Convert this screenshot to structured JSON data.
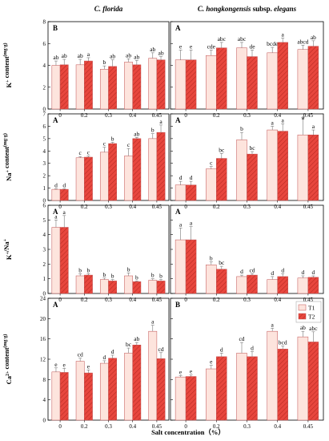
{
  "chart_data": {
    "type": "bar",
    "columns": [
      "C. florida",
      "C. hongkongensis subsp. elegans"
    ],
    "column_title_parts": [
      [
        {
          "t": "C. florida",
          "italic": true
        }
      ],
      [
        {
          "t": "C. hongkongensis",
          "italic": true
        },
        {
          "t": " subsp. ",
          "italic": false
        },
        {
          "t": "elegans",
          "italic": true
        }
      ]
    ],
    "categories": [
      "0",
      "0.2",
      "0.3",
      "0.4",
      "0.45"
    ],
    "xlabel": "Salt concentration（%）",
    "legend": [
      "T1",
      "T2"
    ],
    "legend_position": "top-right of bottom-right panel",
    "series_colors": {
      "T1": "#fde4dd",
      "T2": "#e8473e",
      "T2_hatch": "#b82a22",
      "edge": "#c05050"
    },
    "rows": [
      {
        "ylabel_parts": [
          {
            "t": "K"
          },
          {
            "t": "+",
            "sup": true
          },
          {
            "t": " content"
          },
          {
            "t": "(mg·g)",
            "sup": true
          }
        ],
        "ylim": [
          0,
          8
        ],
        "yticks": [
          0,
          2,
          4,
          6,
          8
        ],
        "panels": [
          {
            "letter": "B",
            "T1": [
              4.0,
              4.05,
              3.65,
              4.3,
              4.65
            ],
            "T1_err": [
              0.4,
              0.5,
              0.3,
              0.3,
              0.5
            ],
            "T2": [
              4.05,
              4.4,
              3.9,
              4.05,
              4.5
            ],
            "T2_err": [
              0.5,
              0.3,
              0.6,
              0.4,
              0.3
            ],
            "T1_sig": [
              "ab",
              "ab",
              "b",
              "ab",
              "ab"
            ],
            "T2_sig": [
              "ab",
              "a",
              "ab",
              "ab",
              "ab"
            ]
          },
          {
            "letter": "A",
            "T1": [
              4.5,
              4.9,
              5.6,
              5.15,
              5.45
            ],
            "T1_err": [
              0.9,
              0.5,
              0.5,
              0.5,
              0.4
            ],
            "T2": [
              4.5,
              5.6,
              4.8,
              6.1,
              5.75
            ],
            "T2_err": [
              0.9,
              0.5,
              0.6,
              0.4,
              0.5
            ],
            "T1_sig": [
              "e",
              "cde",
              "abc",
              "bcde",
              "abcd"
            ],
            "T2_sig": [
              "e",
              "abc",
              "de",
              "a",
              "ab"
            ]
          }
        ]
      },
      {
        "ylabel_parts": [
          {
            "t": "Na"
          },
          {
            "t": "+",
            "sup": true
          },
          {
            "t": " content"
          },
          {
            "t": "(mg·g)",
            "sup": true
          }
        ],
        "ylim": [
          0,
          7
        ],
        "yticks": [
          0,
          1,
          2,
          3,
          4,
          5,
          6,
          7
        ],
        "panels": [
          {
            "letter": "A",
            "T1": [
              0.9,
              3.45,
              3.9,
              3.6,
              5.0
            ],
            "T1_err": [
              0.05,
              0.1,
              0.4,
              0.6,
              0.4
            ],
            "T2": [
              0.9,
              3.5,
              4.6,
              5.0,
              5.5
            ],
            "T2_err": [
              0.05,
              0.1,
              0.1,
              0.1,
              0.6
            ],
            "T1_sig": [
              "d",
              "c",
              "c",
              "c",
              "b"
            ],
            "T2_sig": [
              "d",
              "c",
              "b",
              "ab",
              "a"
            ]
          },
          {
            "letter": "A",
            "T1": [
              1.25,
              2.55,
              4.9,
              5.7,
              5.3
            ],
            "T1_err": [
              0.3,
              0.2,
              0.6,
              0.3,
              1.4
            ],
            "T2": [
              1.25,
              3.4,
              3.75,
              5.6,
              5.3
            ],
            "T2_err": [
              0.3,
              0.4,
              0.2,
              0.6,
              0.4
            ],
            "T1_sig": [
              "d",
              "c",
              "b",
              "a",
              "a"
            ],
            "T2_sig": [
              "d",
              "bc",
              "bc",
              "a",
              "a"
            ]
          }
        ]
      },
      {
        "ylabel_parts": [
          {
            "t": "K"
          },
          {
            "t": "+",
            "sup": true
          },
          {
            "t": "/Na"
          },
          {
            "t": "+",
            "sup": true
          }
        ],
        "ylim": [
          0,
          6
        ],
        "yticks": [
          0,
          1,
          2,
          3,
          4,
          5,
          6
        ],
        "panels": [
          {
            "letter": "A",
            "T1": [
              4.5,
              1.2,
              0.95,
              1.2,
              0.9
            ],
            "T1_err": [
              0.5,
              0.15,
              0.1,
              0.2,
              0.1
            ],
            "T2": [
              4.5,
              1.25,
              0.85,
              0.8,
              0.85
            ],
            "T2_err": [
              0.8,
              0.1,
              0.1,
              0.05,
              0.1
            ],
            "T1_sig": [
              "a",
              "b",
              "b",
              "b",
              "b"
            ],
            "T2_sig": [
              "a",
              "b",
              "b",
              "b",
              "b"
            ]
          },
          {
            "letter": "A",
            "T1": [
              3.65,
              1.95,
              1.15,
              0.95,
              1.05
            ],
            "T1_err": [
              0.8,
              0.2,
              0.1,
              0.2,
              0.15
            ],
            "T2": [
              3.65,
              1.65,
              1.25,
              1.15,
              1.1
            ],
            "T2_err": [
              0.9,
              0.2,
              0.1,
              0.2,
              0.1
            ],
            "T1_sig": [
              "a",
              "b",
              "d",
              "d",
              "d"
            ],
            "T2_sig": [
              "a",
              "bc",
              "cd",
              "d",
              "d"
            ]
          }
        ]
      },
      {
        "ylabel_parts": [
          {
            "t": "Ca"
          },
          {
            "t": "2+",
            "sup": true
          },
          {
            "t": " content"
          },
          {
            "t": "(mg·g)",
            "sup": true
          }
        ],
        "ylim": [
          0,
          24
        ],
        "yticks": [
          0,
          4,
          8,
          12,
          16,
          20,
          24
        ],
        "panels": [
          {
            "letter": "A",
            "T1": [
              9.5,
              11.6,
              11.2,
              13.2,
              17.5
            ],
            "T1_err": [
              0.8,
              0.6,
              0.5,
              1.0,
              1.2
            ],
            "T2": [
              9.4,
              9.3,
              12.2,
              14.8,
              12.1
            ],
            "T2_err": [
              0.8,
              0.6,
              0.6,
              0.5,
              1.2
            ],
            "T1_sig": [
              "e",
              "cd",
              "d",
              "bc",
              "a"
            ],
            "T2_sig": [
              "e",
              "e",
              "d",
              "ab",
              "cd"
            ]
          },
          {
            "letter": "B",
            "T1": [
              8.5,
              10.1,
              13.2,
              17.5,
              16.4
            ],
            "T1_err": [
              0.3,
              0.7,
              2.1,
              0.6,
              1.1
            ],
            "T2": [
              8.6,
              12.5,
              12.5,
              14.0,
              15.4
            ],
            "T2_err": [
              0.3,
              0.7,
              1.0,
              0.6,
              2.0
            ],
            "T1_sig": [
              "e",
              "e",
              "cd",
              "a",
              "ab"
            ],
            "T2_sig": [
              "e",
              "d",
              "d",
              "bcd",
              "abc"
            ]
          }
        ]
      }
    ]
  }
}
